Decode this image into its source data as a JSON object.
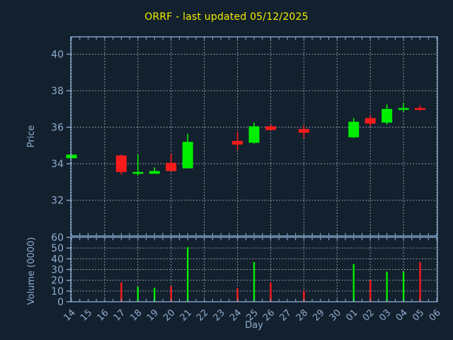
{
  "title": "ORRF - last updated 05/12/2025",
  "colors": {
    "background": "#13202e",
    "frame": "#8cb0d4",
    "grid": "#a9b3bf",
    "label": "#8fadce",
    "title": "#f2ee00",
    "up": "#00ef00",
    "down": "#f91b1b"
  },
  "chart_data": {
    "type": "candlestick-with-volume",
    "title": "ORRF - last updated 05/12/2025",
    "xlabel": "Day",
    "x_categories": [
      "14",
      "15",
      "16",
      "17",
      "18",
      "19",
      "20",
      "21",
      "22",
      "23",
      "24",
      "25",
      "26",
      "27",
      "28",
      "29",
      "30",
      "01",
      "02",
      "03",
      "04",
      "05",
      "06"
    ],
    "x_grid_every": 2,
    "price_axis": {
      "label": "Price",
      "ticks": [
        32,
        34,
        36,
        38,
        40
      ],
      "tick_labels": [
        "32",
        "34",
        "36",
        "38",
        "40"
      ],
      "ylim": [
        30.05,
        40.95
      ],
      "grid": "dotted"
    },
    "volume_axis": {
      "label": "Volume (0000)",
      "ticks": [
        0,
        10,
        20,
        30,
        40,
        50,
        60
      ],
      "tick_labels": [
        "0",
        "10",
        "20",
        "30",
        "40",
        "50",
        "60"
      ],
      "ylim": [
        0,
        60
      ],
      "grid": "dotted"
    },
    "series": [
      {
        "day": "14",
        "open": 34.3,
        "high": 34.5,
        "low": 34.3,
        "close": 34.5,
        "volume": 0,
        "direction": "up"
      },
      {
        "day": "17",
        "open": 34.45,
        "high": 34.5,
        "low": 33.4,
        "close": 33.55,
        "volume": 18,
        "direction": "down"
      },
      {
        "day": "18",
        "open": 33.45,
        "high": 34.5,
        "low": 33.35,
        "close": 33.55,
        "volume": 14,
        "direction": "up"
      },
      {
        "day": "19",
        "open": 33.45,
        "high": 33.8,
        "low": 33.45,
        "close": 33.6,
        "volume": 13,
        "direction": "up"
      },
      {
        "day": "20",
        "open": 34.05,
        "high": 34.55,
        "low": 33.6,
        "close": 33.6,
        "volume": 14.5,
        "direction": "down"
      },
      {
        "day": "21",
        "open": 33.75,
        "high": 35.65,
        "low": 33.75,
        "close": 35.2,
        "volume": 51,
        "direction": "up"
      },
      {
        "day": "24",
        "open": 35.25,
        "high": 35.75,
        "low": 34.75,
        "close": 35.05,
        "volume": 12.5,
        "direction": "down"
      },
      {
        "day": "25",
        "open": 35.15,
        "high": 36.25,
        "low": 35.1,
        "close": 36.05,
        "volume": 37,
        "direction": "up"
      },
      {
        "day": "26",
        "open": 36.05,
        "high": 36.15,
        "low": 35.8,
        "close": 35.85,
        "volume": 18,
        "direction": "down"
      },
      {
        "day": "28",
        "open": 35.9,
        "high": 36.1,
        "low": 35.4,
        "close": 35.7,
        "volume": 10,
        "direction": "down"
      },
      {
        "day": "01",
        "open": 35.45,
        "high": 36.5,
        "low": 35.4,
        "close": 36.3,
        "volume": 35,
        "direction": "up"
      },
      {
        "day": "02",
        "open": 36.5,
        "high": 36.65,
        "low": 36.05,
        "close": 36.2,
        "volume": 20,
        "direction": "down"
      },
      {
        "day": "03",
        "open": 36.25,
        "high": 37.25,
        "low": 36.15,
        "close": 37.0,
        "volume": 28,
        "direction": "up"
      },
      {
        "day": "04",
        "open": 36.95,
        "high": 37.35,
        "low": 36.85,
        "close": 37.05,
        "volume": 28,
        "direction": "up"
      },
      {
        "day": "05",
        "open": 37.05,
        "high": 37.2,
        "low": 36.9,
        "close": 36.95,
        "volume": 37,
        "direction": "down"
      }
    ]
  }
}
